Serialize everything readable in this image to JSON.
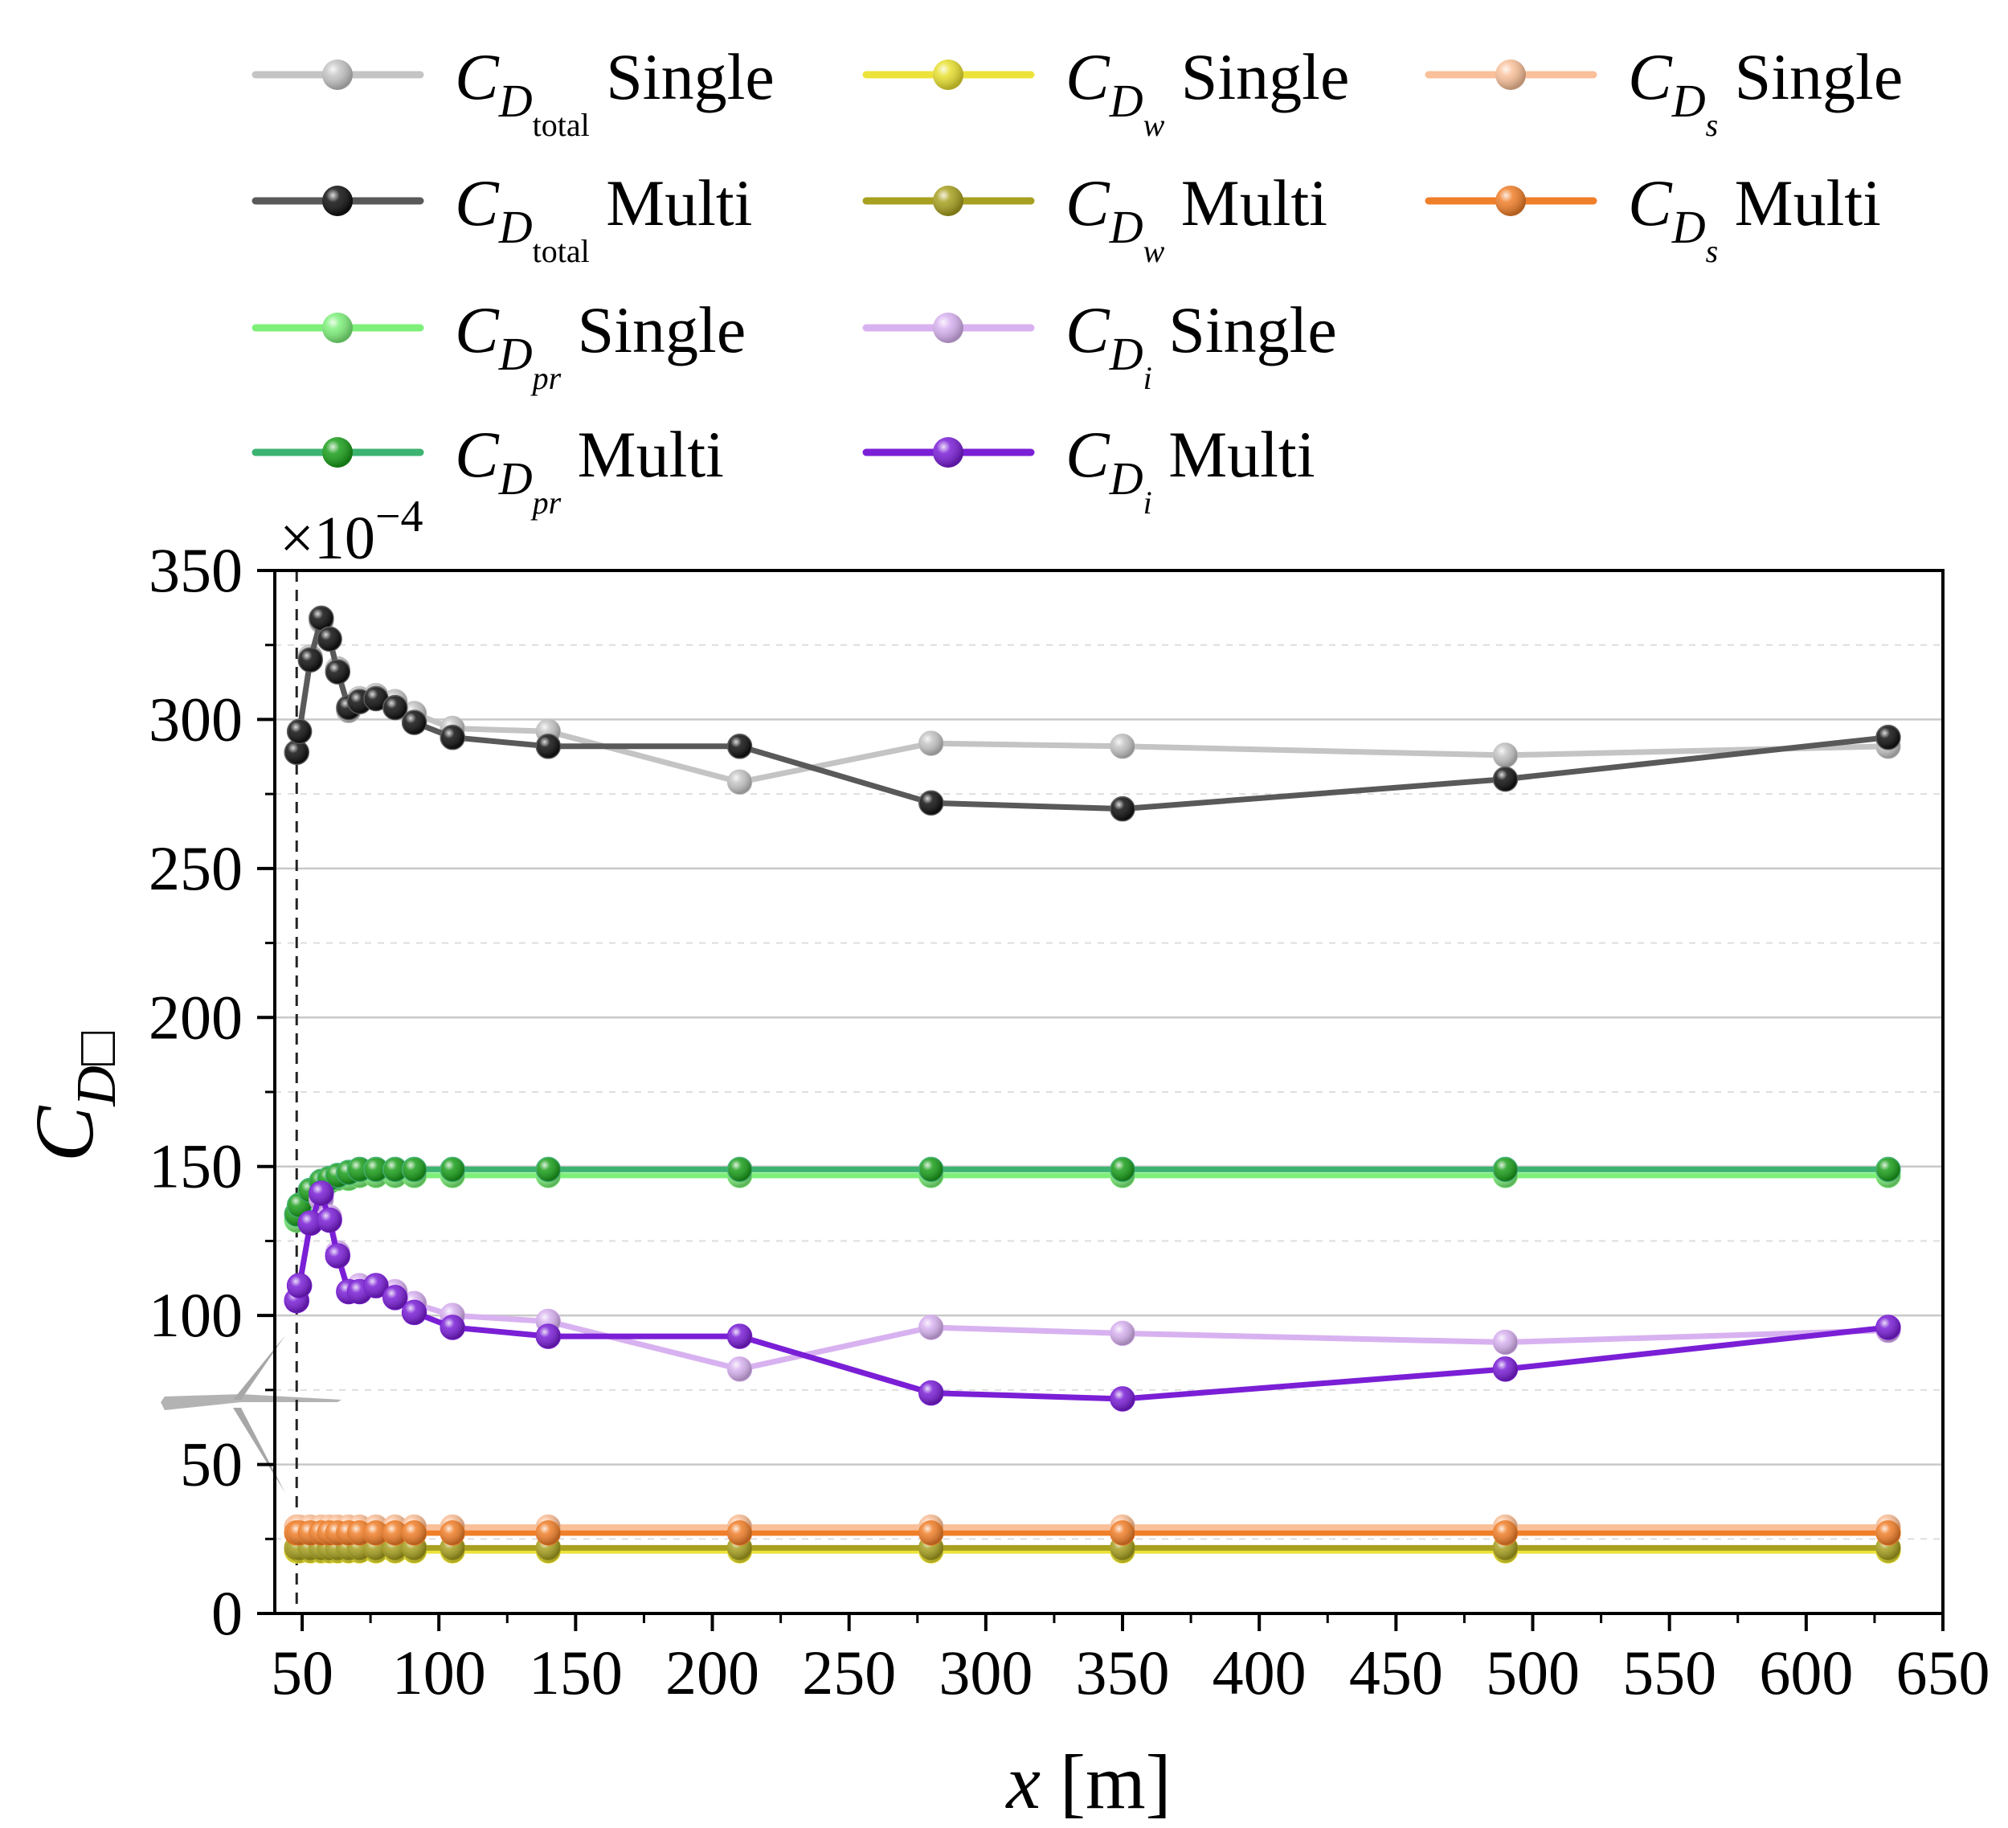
{
  "chart_data": {
    "type": "line",
    "xlabel_var": "x",
    "xlabel_unit": "[m]",
    "ylabel_main": "C",
    "ylabel_sub": "D□",
    "y_multiplier": "×10",
    "y_multiplier_exp": "−4",
    "xlim": [
      40,
      650
    ],
    "ylim": [
      0,
      350
    ],
    "xticks": [
      50,
      100,
      150,
      200,
      250,
      300,
      350,
      400,
      450,
      500,
      550,
      600,
      650
    ],
    "yticks": [
      0,
      50,
      100,
      150,
      200,
      250,
      300,
      350
    ],
    "grid": "horizontal",
    "legend_placement": "top",
    "reference_line_x": 48,
    "series": [
      {
        "key": "total_single",
        "sym": "C",
        "sub": "D",
        "subsub": "total",
        "label": "Single",
        "color": "#c4c4c4",
        "marker": "#c4c4c4",
        "x": [
          48,
          49,
          53,
          57,
          60,
          63,
          67,
          71,
          77,
          84,
          91,
          105,
          140,
          210,
          280,
          350,
          490,
          630
        ],
        "y": [
          289,
          296,
          321,
          333,
          327,
          317,
          303,
          307,
          308,
          306,
          302,
          297,
          296,
          279,
          292,
          291,
          288,
          291
        ]
      },
      {
        "key": "total_multi",
        "sym": "C",
        "sub": "D",
        "subsub": "total",
        "label": "Multi",
        "color": "#595959",
        "marker": "#111111",
        "x": [
          48,
          49,
          53,
          57,
          60,
          63,
          67,
          71,
          77,
          84,
          91,
          105,
          140,
          210,
          280,
          350,
          490,
          630
        ],
        "y": [
          289,
          296,
          320,
          334,
          327,
          316,
          304,
          306,
          307,
          304,
          299,
          294,
          291,
          291,
          272,
          270,
          280,
          294
        ]
      },
      {
        "key": "pr_single",
        "sym": "C",
        "sub": "D",
        "subsub": "pr",
        "label": "Single",
        "color": "#7ef07a",
        "marker": "#7ef07a",
        "x": [
          48,
          49,
          53,
          57,
          60,
          63,
          67,
          71,
          77,
          84,
          91,
          105,
          140,
          210,
          280,
          350,
          490,
          630
        ],
        "y": [
          132,
          136,
          141,
          144,
          145,
          146,
          146,
          147,
          147,
          147,
          147,
          147,
          147,
          147,
          147,
          147,
          147,
          147
        ]
      },
      {
        "key": "pr_multi",
        "sym": "C",
        "sub": "D",
        "subsub": "pr",
        "label": "Multi",
        "color": "#3cb371",
        "marker": "#1a9e1a",
        "x": [
          48,
          49,
          53,
          57,
          60,
          63,
          67,
          71,
          77,
          84,
          91,
          105,
          140,
          210,
          280,
          350,
          490,
          630
        ],
        "y": [
          134,
          137,
          142,
          145,
          146,
          147,
          148,
          149,
          149,
          149,
          149,
          149,
          149,
          149,
          149,
          149,
          149,
          149
        ]
      },
      {
        "key": "w_single",
        "sym": "C",
        "sub": "D",
        "subsub": "w",
        "label": "Single",
        "color": "#ece33a",
        "marker": "#e8e030",
        "x": [
          48,
          49,
          53,
          57,
          60,
          63,
          67,
          71,
          77,
          84,
          91,
          105,
          140,
          210,
          280,
          350,
          490,
          630
        ],
        "y": [
          21,
          21,
          21,
          21,
          21,
          21,
          21,
          21,
          21,
          21,
          21,
          21,
          21,
          21,
          21,
          21,
          21,
          21
        ]
      },
      {
        "key": "w_multi",
        "sym": "C",
        "sub": "D",
        "subsub": "w",
        "label": "Multi",
        "color": "#a8a020",
        "marker": "#a8a020",
        "x": [
          48,
          49,
          53,
          57,
          60,
          63,
          67,
          71,
          77,
          84,
          91,
          105,
          140,
          210,
          280,
          350,
          490,
          630
        ],
        "y": [
          22,
          22,
          22,
          22,
          22,
          22,
          22,
          22,
          22,
          22,
          22,
          22,
          22,
          22,
          22,
          22,
          22,
          22
        ]
      },
      {
        "key": "i_single",
        "sym": "C",
        "sub": "D",
        "subsub": "i",
        "label": "Single",
        "color": "#d8b2f0",
        "marker": "#d8b2f0",
        "x": [
          48,
          49,
          53,
          57,
          60,
          63,
          67,
          71,
          77,
          84,
          91,
          105,
          140,
          210,
          280,
          350,
          490,
          630
        ],
        "y": [
          105,
          110,
          131,
          139,
          133,
          121,
          108,
          110,
          110,
          108,
          104,
          100,
          98,
          82,
          96,
          94,
          91,
          95
        ]
      },
      {
        "key": "i_multi",
        "sym": "C",
        "sub": "D",
        "subsub": "i",
        "label": "Multi",
        "color": "#7a1fd6",
        "marker": "#7a1fd6",
        "x": [
          48,
          49,
          53,
          57,
          60,
          63,
          67,
          71,
          77,
          84,
          91,
          105,
          140,
          210,
          280,
          350,
          490,
          630
        ],
        "y": [
          105,
          110,
          131,
          141,
          132,
          120,
          108,
          108,
          110,
          106,
          101,
          96,
          93,
          93,
          74,
          72,
          82,
          96
        ]
      },
      {
        "key": "s_single",
        "sym": "C",
        "sub": "D",
        "subsub": "s",
        "label": "Single",
        "color": "#f9c09a",
        "marker": "#f9c09a",
        "x": [
          48,
          49,
          53,
          57,
          60,
          63,
          67,
          71,
          77,
          84,
          91,
          105,
          140,
          210,
          280,
          350,
          490,
          630
        ],
        "y": [
          29,
          29,
          29,
          29,
          29,
          29,
          29,
          29,
          29,
          29,
          29,
          29,
          29,
          29,
          29,
          29,
          29,
          29
        ]
      },
      {
        "key": "s_multi",
        "sym": "C",
        "sub": "D",
        "subsub": "s",
        "label": "Multi",
        "color": "#f07f2a",
        "marker": "#f07f2a",
        "x": [
          48,
          49,
          53,
          57,
          60,
          63,
          67,
          71,
          77,
          84,
          91,
          105,
          140,
          210,
          280,
          350,
          490,
          630
        ],
        "y": [
          27,
          27,
          27,
          27,
          27,
          27,
          27,
          27,
          27,
          27,
          27,
          27,
          27,
          27,
          27,
          27,
          27,
          27
        ]
      }
    ],
    "legend_order": [
      [
        "total_single",
        "w_single",
        "s_single"
      ],
      [
        "total_multi",
        "w_multi",
        "s_multi"
      ],
      [
        "pr_single",
        "i_single"
      ],
      [
        "pr_multi",
        "i_multi"
      ]
    ],
    "draw_order": [
      "w_single",
      "w_multi",
      "s_single",
      "s_multi",
      "pr_single",
      "pr_multi",
      "i_single",
      "i_multi",
      "total_single",
      "total_multi"
    ]
  }
}
